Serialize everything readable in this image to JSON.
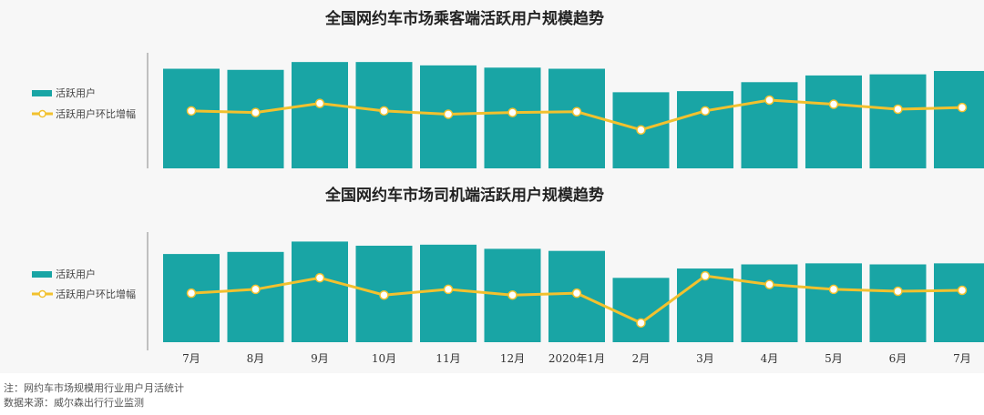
{
  "chart_data": [
    {
      "type": "bar",
      "title": "全国网约车市场乘客端活跃用户规模趋势",
      "categories": [
        "7月",
        "8月",
        "9月",
        "10月",
        "11月",
        "12月",
        "2020年1月",
        "2月",
        "3月",
        "4月",
        "5月",
        "6月",
        "7月"
      ],
      "legend_placement": "left",
      "grid": false,
      "series": [
        {
          "name": "活跃用户",
          "type": "bar",
          "color": "#19a5a5",
          "values": [
            89,
            88,
            95,
            95,
            92,
            90,
            89,
            68,
            69,
            77,
            83,
            84,
            87
          ]
        },
        {
          "name": "活跃用户环比增幅",
          "type": "line",
          "color": "#f2c12e",
          "values": [
            51,
            49,
            60,
            51,
            47,
            49,
            50,
            28,
            51,
            64,
            59,
            53,
            55
          ]
        }
      ]
    },
    {
      "type": "bar",
      "title": "全国网约车市场司机端活跃用户规模趋势",
      "categories": [
        "7月",
        "8月",
        "9月",
        "10月",
        "11月",
        "12月",
        "2020年1月",
        "2月",
        "3月",
        "4月",
        "5月",
        "6月",
        "7月"
      ],
      "legend_placement": "left",
      "grid": false,
      "series": [
        {
          "name": "活跃用户",
          "type": "bar",
          "color": "#19a5a5",
          "values": [
            85,
            87,
            97,
            93,
            94,
            90,
            88,
            62,
            71,
            75,
            76,
            75,
            76
          ]
        },
        {
          "name": "活跃用户环比增幅",
          "type": "line",
          "color": "#f2c12e",
          "values": [
            54,
            58,
            70,
            52,
            58,
            52,
            54,
            23,
            72,
            63,
            58,
            56,
            57
          ]
        }
      ]
    }
  ],
  "footer": {
    "note": "注：网约车市场规模用行业用户月活统计",
    "source": "数据来源：威尔森出行行业监测"
  }
}
